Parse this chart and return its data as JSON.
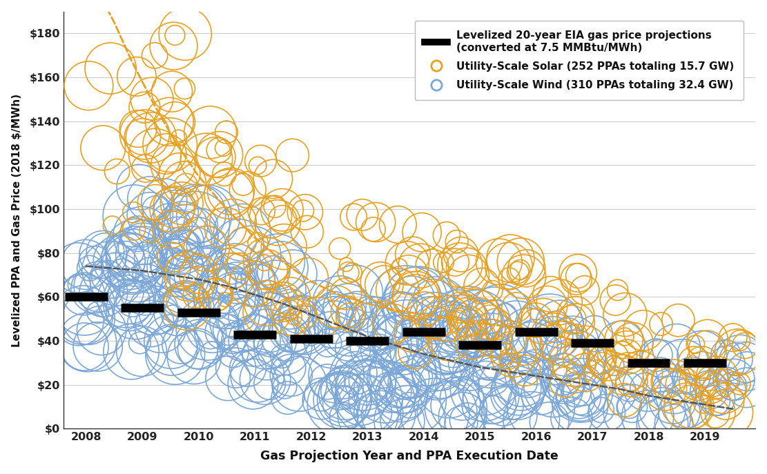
{
  "title": "",
  "xlabel": "Gas Projection Year and PPA Execution Date",
  "ylabel": "Levelized PPA and Gas Price (2018 $/MWh)",
  "xlim": [
    2007.6,
    2019.9
  ],
  "ylim": [
    0,
    190
  ],
  "yticks": [
    0,
    20,
    40,
    60,
    80,
    100,
    120,
    140,
    160,
    180
  ],
  "ytick_labels": [
    "$0",
    "$20",
    "$40",
    "$60",
    "$80",
    "$100",
    "$120",
    "$140",
    "$160",
    "$180"
  ],
  "xticks": [
    2008,
    2009,
    2010,
    2011,
    2012,
    2013,
    2014,
    2015,
    2016,
    2017,
    2018,
    2019
  ],
  "solar_color": "#E8A020",
  "wind_color": "#7BA7D8",
  "gas_color": "#000000",
  "wind_trend_color": "#555555",
  "legend_gas_label": "Levelized 20-year EIA gas price projections\n(converted at 7.5 MMBtu/MWh)",
  "legend_solar_label": "Utility-Scale Solar (252 PPAs totaling 15.7 GW)",
  "legend_wind_label": "Utility-Scale Wind (310 PPAs totaling 32.4 GW)",
  "background_color": "#FFFFFF",
  "grid_color": "#CCCCCC",
  "gas_prices": [
    [
      2008,
      60
    ],
    [
      2009,
      55
    ],
    [
      2010,
      53
    ],
    [
      2011,
      43
    ],
    [
      2012,
      41
    ],
    [
      2013,
      40
    ],
    [
      2014,
      44
    ],
    [
      2015,
      38
    ],
    [
      2016,
      44
    ],
    [
      2017,
      39
    ],
    [
      2018,
      30
    ],
    [
      2019,
      30
    ]
  ],
  "solar_trend_x": [
    2008.0,
    2008.2,
    2008.5,
    2008.8,
    2009.2,
    2009.6,
    2010.0,
    2010.5,
    2011.0,
    2011.5,
    2012.0,
    2012.5,
    2013.0,
    2013.5,
    2014.0,
    2015.0,
    2016.0,
    2017.0,
    2018.0,
    2019.0,
    2019.5
  ],
  "solar_trend_y": [
    210,
    200,
    185,
    168,
    148,
    130,
    115,
    100,
    87,
    76,
    67,
    61,
    57,
    54,
    52,
    48,
    45,
    38,
    30,
    23,
    20
  ],
  "wind_trend_x": [
    2008.0,
    2008.5,
    2009.0,
    2009.5,
    2010.0,
    2010.5,
    2011.0,
    2011.5,
    2012.0,
    2012.5,
    2013.0,
    2013.5,
    2014.0,
    2014.5,
    2015.0,
    2015.5,
    2016.0,
    2016.5,
    2017.0,
    2017.5,
    2018.0,
    2018.5,
    2019.0,
    2019.5
  ],
  "wind_trend_y": [
    74,
    73,
    72,
    70,
    68,
    65,
    61,
    57,
    52,
    47,
    42,
    38,
    34,
    31,
    28,
    26,
    24,
    22,
    20,
    18,
    15,
    13,
    11,
    9
  ]
}
